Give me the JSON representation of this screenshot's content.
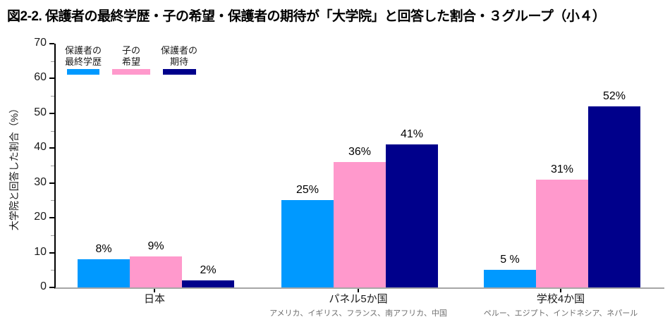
{
  "title": "図2-2. 保護者の最終学歴・子の希望・保護者の期待が「大学院」と回答した割合・３グループ（小４）",
  "chart_data": {
    "type": "bar",
    "title": "図2-2. 保護者の最終学歴・子の希望・保護者の期待が「大学院」と回答した割合・３グループ（小４）",
    "xlabel": "",
    "ylabel": "大学院と回答した割合（%）",
    "ylim": [
      0,
      70
    ],
    "yticks": [
      0,
      10,
      20,
      30,
      40,
      50,
      60,
      70
    ],
    "minor_tick_step": 5,
    "grid": false,
    "legend_position": "top-left",
    "categories": [
      "日本",
      "パネル5か国",
      "学校4か国"
    ],
    "category_sublabels": [
      "",
      "アメリカ、イギリス、フランス、南アフリカ、中国",
      "ペルー、エジプト、インドネシア、ネパール"
    ],
    "series": [
      {
        "name": "保護者の最終学歴",
        "legend_label": "保護者の\n最終学歴",
        "color": "#0099ff",
        "values": [
          8,
          25,
          5
        ],
        "display": [
          "8%",
          "25%",
          "5 %"
        ]
      },
      {
        "name": "子の希望",
        "legend_label": "子の\n希望",
        "color": "#ff99cc",
        "values": [
          9,
          36,
          31
        ],
        "display": [
          "9%",
          "36%",
          "31%"
        ]
      },
      {
        "name": "保護者の期待",
        "legend_label": "保護者の\n期待",
        "color": "#00008b",
        "values": [
          2,
          41,
          52
        ],
        "display": [
          "2%",
          "41%",
          "52%"
        ]
      }
    ]
  },
  "colors": {
    "axis_line": "#000000",
    "baseline": "#a6a6a6",
    "sublabel_text": "#6e6e6e",
    "label_text": "#000000"
  }
}
